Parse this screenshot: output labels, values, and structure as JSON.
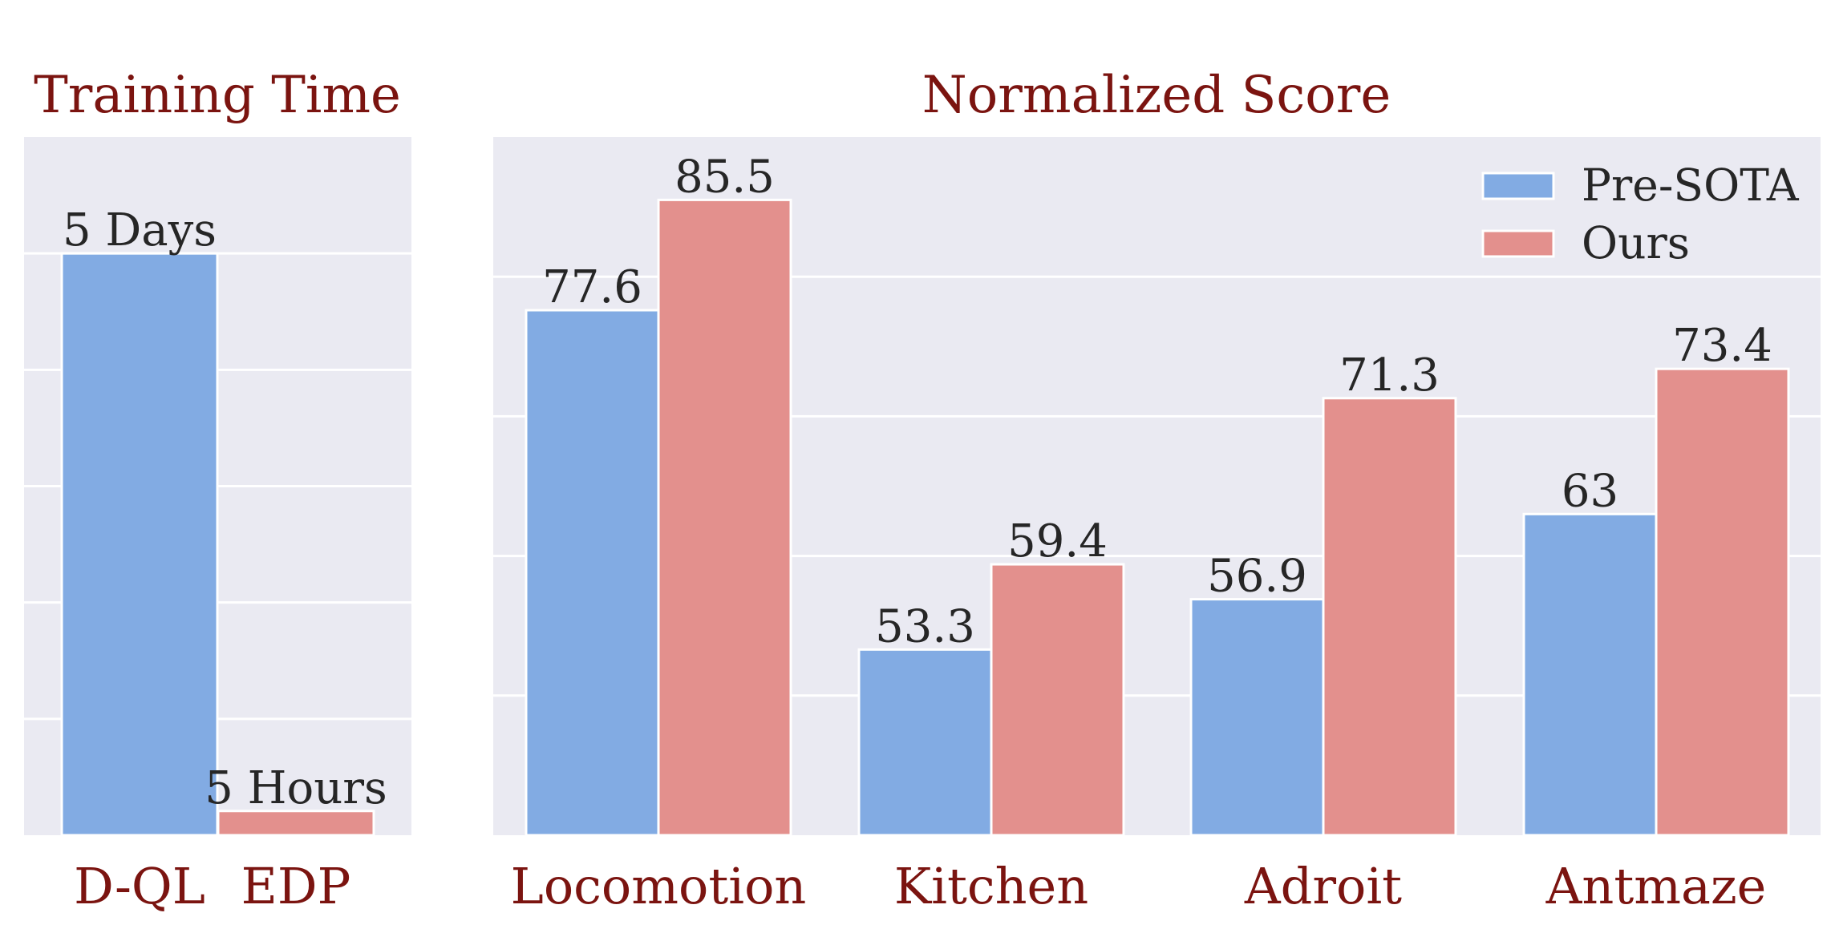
{
  "colors": {
    "pre_sota": "#82abe3",
    "ours": "#e3908d",
    "panel_bg": "#eaeaf2",
    "grid": "#ffffff",
    "title_text": "#7b1410",
    "label_text": "#262626"
  },
  "chart_data": [
    {
      "type": "bar",
      "title": "Training Time",
      "categories": [
        "D-QL",
        "EDP"
      ],
      "values": [
        120,
        5
      ],
      "unit": "hours",
      "data_labels": [
        "5 Days",
        "5 Hours"
      ],
      "bar_colors": [
        "#82abe3",
        "#e3908d"
      ],
      "ylim": [
        0,
        144
      ],
      "grid": true,
      "y_tick_labels_shown": false
    },
    {
      "type": "bar",
      "title": "Normalized Score",
      "categories": [
        "Locomotion",
        "Kitchen",
        "Adroit",
        "Antmaze"
      ],
      "series": [
        {
          "name": "Pre-SOTA",
          "color": "#82abe3",
          "values": [
            77.6,
            53.3,
            56.9,
            63
          ],
          "data_labels": [
            "77.6",
            "53.3",
            "56.9",
            "63"
          ]
        },
        {
          "name": "Ours",
          "color": "#e3908d",
          "values": [
            85.5,
            59.4,
            71.3,
            73.4
          ],
          "data_labels": [
            "85.5",
            "59.4",
            "71.3",
            "73.4"
          ]
        }
      ],
      "ylim": [
        40,
        90
      ],
      "grid": true,
      "y_tick_labels_shown": false,
      "legend": "top-right"
    }
  ]
}
